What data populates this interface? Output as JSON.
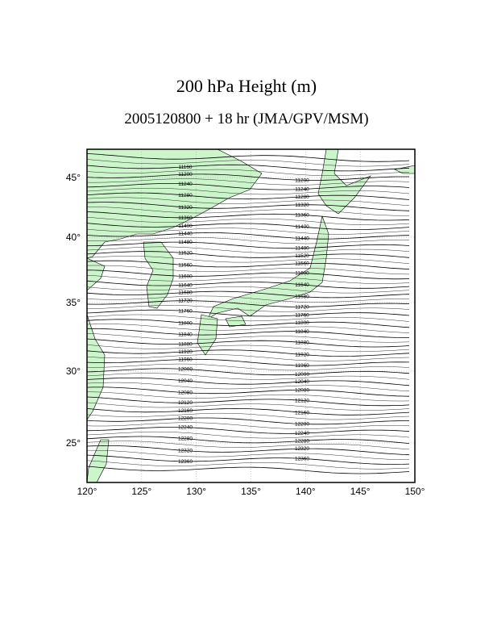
{
  "header": {
    "title": "200 hPa Height (m)",
    "subtitle": "2005120800 + 18 hr (JMA/GPV/MSM)"
  },
  "map": {
    "lon_ticks": [
      "120°",
      "125°",
      "130°",
      "135°",
      "140°",
      "145°",
      "150°"
    ],
    "lat_ticks": [
      "45°",
      "40°",
      "35°",
      "30°",
      "25°"
    ],
    "contour_labels": [
      "11160",
      "11200",
      "11240",
      "11280",
      "11320",
      "11360",
      "11400",
      "11440",
      "11480",
      "11520",
      "11560",
      "11600",
      "11640",
      "11680",
      "11720",
      "11760",
      "11800",
      "11840",
      "11880",
      "11920",
      "11960",
      "12000",
      "12040",
      "12080",
      "12120",
      "12160",
      "12200",
      "12240",
      "12280",
      "12320",
      "12360"
    ]
  }
}
